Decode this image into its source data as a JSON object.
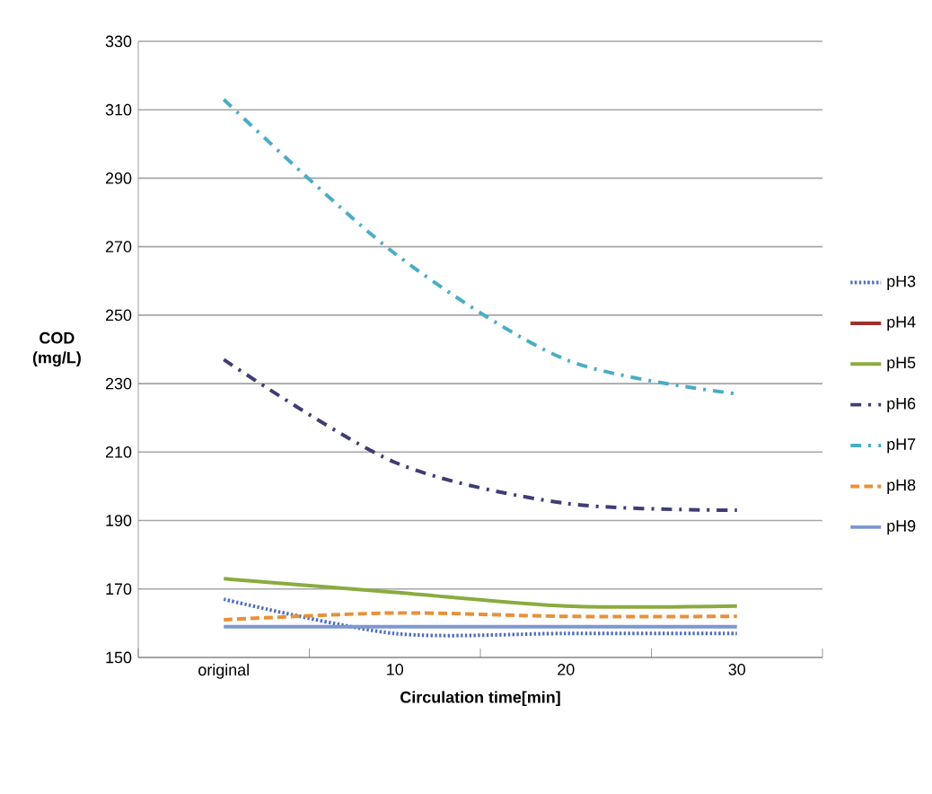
{
  "chart_data": {
    "type": "line",
    "xlabel": "Circulation time[min]",
    "ylabel": "COD (mg/L)",
    "categories": [
      "original",
      "10",
      "20",
      "30"
    ],
    "ylim": [
      150,
      330
    ],
    "yticks": [
      150,
      170,
      190,
      210,
      230,
      250,
      270,
      290,
      310,
      330
    ],
    "grid": "y",
    "legend": "right",
    "marker": "none",
    "series": [
      {
        "name": "pH3",
        "color": "#4f6fbf",
        "line_style": "dotted",
        "values": [
          167,
          157,
          157,
          157
        ]
      },
      {
        "name": "pH4",
        "color": "#a0302d",
        "line_style": "solid",
        "values": [
          null,
          null,
          null,
          null
        ]
      },
      {
        "name": "pH5",
        "color": "#8aab3f",
        "line_style": "solid",
        "values": [
          173,
          169,
          165,
          165
        ]
      },
      {
        "name": "pH6",
        "color": "#3f3d74",
        "line_style": "dashdot",
        "values": [
          237,
          207,
          195,
          193
        ]
      },
      {
        "name": "pH7",
        "color": "#4bacc6",
        "line_style": "dashdot",
        "values": [
          313,
          268,
          237,
          227
        ]
      },
      {
        "name": "pH8",
        "color": "#e8903a",
        "line_style": "dashed",
        "values": [
          161,
          163,
          162,
          162
        ]
      },
      {
        "name": "pH9",
        "color": "#7d97cf",
        "line_style": "solid",
        "values": [
          159,
          159,
          159,
          159
        ]
      }
    ]
  }
}
